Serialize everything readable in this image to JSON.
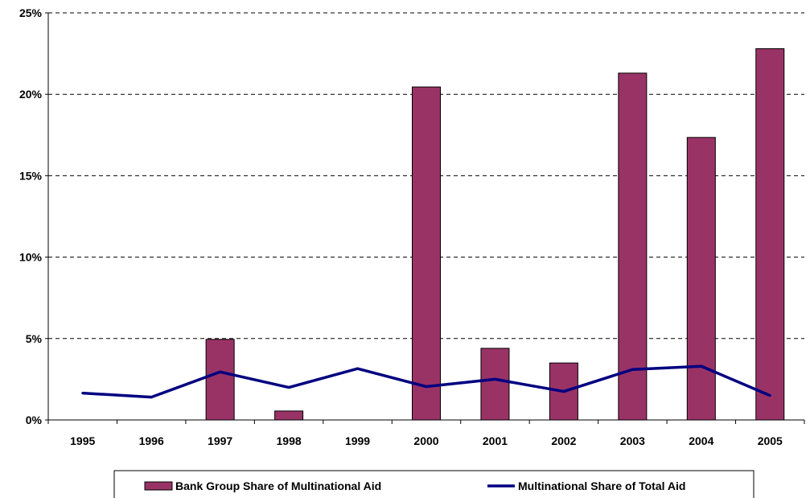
{
  "chart_data": {
    "type": "bar",
    "categories": [
      "1995",
      "1996",
      "1997",
      "1998",
      "1999",
      "2000",
      "2001",
      "2002",
      "2003",
      "2004",
      "2005"
    ],
    "series": [
      {
        "name": "Bank Group Share of Multinational Aid",
        "type": "bar",
        "color": "#993366",
        "values": [
          0,
          0,
          4.95,
          0.55,
          0,
          20.45,
          4.4,
          3.5,
          21.3,
          17.35,
          22.8
        ]
      },
      {
        "name": "Multinational Share of Total Aid",
        "type": "line",
        "color": "#000080",
        "values": [
          1.65,
          1.4,
          2.95,
          2.0,
          3.15,
          2.05,
          2.5,
          1.75,
          3.1,
          3.3,
          1.5
        ]
      }
    ],
    "y_ticks": [
      "0%",
      "5%",
      "10%",
      "15%",
      "20%",
      "25%"
    ],
    "ylim": [
      0,
      25
    ],
    "grid": "horizontal-dashed",
    "legend_position": "bottom"
  }
}
